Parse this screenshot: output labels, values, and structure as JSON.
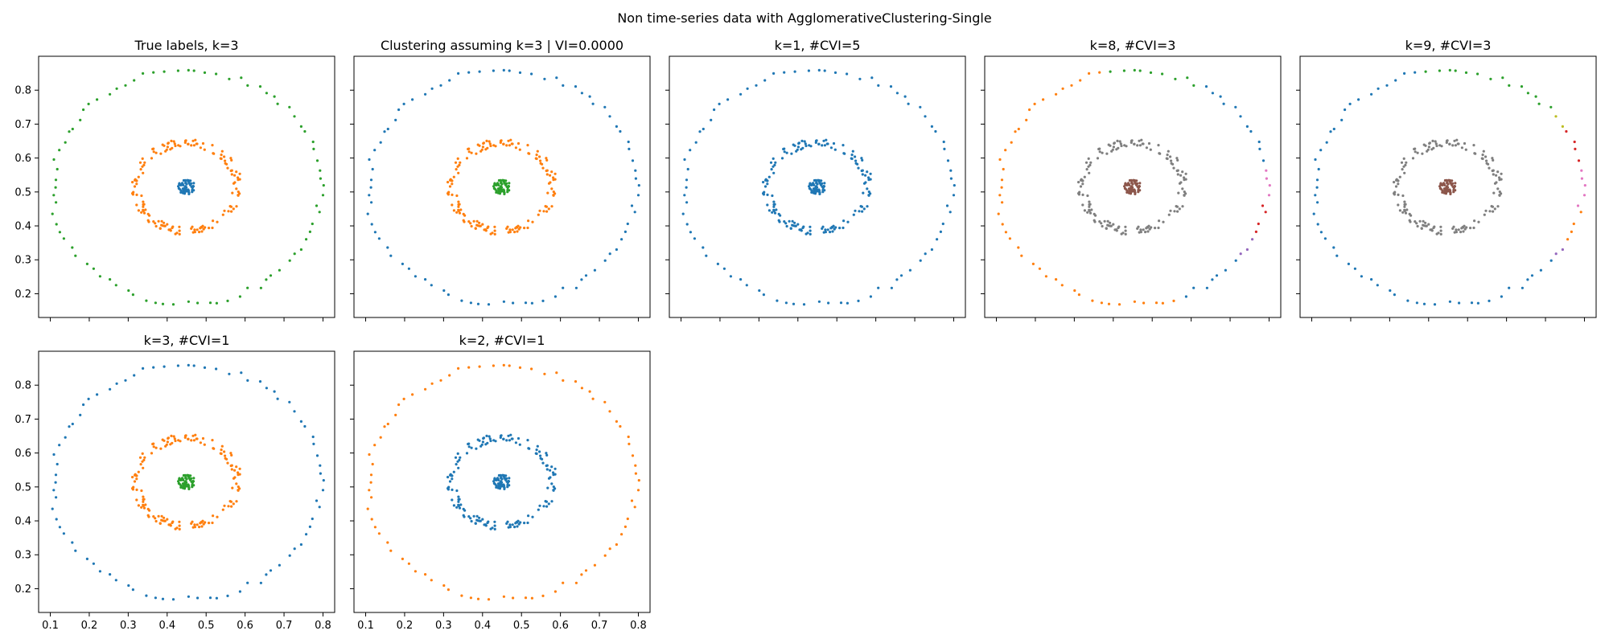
{
  "figure": {
    "suptitle": "Non time-series data with AgglomerativeClustering-Single"
  },
  "palette": [
    "#1f77b4",
    "#ff7f0e",
    "#2ca02c",
    "#d62728",
    "#9467bd",
    "#8c564b",
    "#e377c2",
    "#7f7f7f",
    "#bcbd22",
    "#17becf"
  ],
  "chart_data": [
    {
      "type": "scatter",
      "title": "True labels, k=3",
      "xlabel": "",
      "ylabel": "",
      "xlim": [
        0.07,
        0.83
      ],
      "ylim": [
        0.13,
        0.9
      ],
      "xticks": [
        "0.1",
        "0.2",
        "0.3",
        "0.4",
        "0.5",
        "0.6",
        "0.7",
        "0.8"
      ],
      "yticks": [
        "0.2",
        "0.3",
        "0.4",
        "0.5",
        "0.6",
        "0.7",
        "0.8"
      ],
      "grid": false,
      "series": [
        {
          "points": "core",
          "color": "#1f77b4"
        },
        {
          "points": "middle",
          "color": "#ff7f0e"
        },
        {
          "points": "outer",
          "color": "#2ca02c"
        }
      ]
    },
    {
      "type": "scatter",
      "title": "Clustering assuming k=3 | VI=0.0000",
      "xlim": [
        0.07,
        0.83
      ],
      "ylim": [
        0.13,
        0.9
      ],
      "grid": false,
      "series": [
        {
          "points": "outer",
          "color": "#1f77b4"
        },
        {
          "points": "middle",
          "color": "#ff7f0e"
        },
        {
          "points": "core",
          "color": "#2ca02c"
        }
      ]
    },
    {
      "type": "scatter",
      "title": "k=1, #CVI=5",
      "xlim": [
        0.07,
        0.83
      ],
      "ylim": [
        0.13,
        0.9
      ],
      "grid": false,
      "series": [
        {
          "points": "all",
          "color": "#1f77b4"
        }
      ]
    },
    {
      "type": "scatter",
      "title": "k=8, #CVI=3",
      "xlim": [
        0.07,
        0.83
      ],
      "ylim": [
        0.13,
        0.9
      ],
      "grid": false,
      "series": [
        {
          "points": "core",
          "color": "#8c564b"
        },
        {
          "points": "middle",
          "color": "#7f7f7f"
        },
        {
          "points": "outer",
          "angle_range": [
            -70,
            -36
          ],
          "color": "#1f77b4"
        },
        {
          "points": "outer",
          "angle_range": [
            -36,
            -24
          ],
          "color": "#9467bd"
        },
        {
          "points": "outer",
          "angle_range": [
            -24,
            -8
          ],
          "color": "#d62728"
        },
        {
          "points": "outer",
          "angle_range": [
            -8,
            8
          ],
          "color": "#e377c2"
        },
        {
          "points": "outer",
          "angle_range": [
            8,
            58
          ],
          "color": "#1f77b4"
        },
        {
          "points": "outer",
          "angle_range": [
            58,
            100
          ],
          "color": "#2ca02c"
        },
        {
          "points": "outer",
          "angle_range": [
            100,
            290
          ],
          "color": "#ff7f0e"
        }
      ]
    },
    {
      "type": "scatter",
      "title": "k=9, #CVI=3",
      "xlim": [
        0.07,
        0.83
      ],
      "ylim": [
        0.13,
        0.9
      ],
      "grid": false,
      "series": [
        {
          "points": "core",
          "color": "#8c564b"
        },
        {
          "points": "middle",
          "color": "#7f7f7f"
        },
        {
          "points": "outer",
          "angle_range": [
            -70,
            -36
          ],
          "color": "#1f77b4"
        },
        {
          "points": "outer",
          "angle_range": [
            -36,
            -28
          ],
          "color": "#9467bd"
        },
        {
          "points": "outer",
          "angle_range": [
            -28,
            -10
          ],
          "color": "#ff7f0e"
        },
        {
          "points": "outer",
          "angle_range": [
            -10,
            8
          ],
          "color": "#e377c2"
        },
        {
          "points": "outer",
          "angle_range": [
            8,
            30
          ],
          "color": "#d62728"
        },
        {
          "points": "outer",
          "angle_range": [
            30,
            40
          ],
          "color": "#bcbd22"
        },
        {
          "points": "outer",
          "angle_range": [
            40,
            100
          ],
          "color": "#2ca02c"
        },
        {
          "points": "outer",
          "angle_range": [
            100,
            290
          ],
          "color": "#1f77b4"
        }
      ]
    },
    {
      "type": "scatter",
      "title": "k=3, #CVI=1",
      "xlim": [
        0.07,
        0.83
      ],
      "ylim": [
        0.13,
        0.9
      ],
      "grid": false,
      "series": [
        {
          "points": "outer",
          "color": "#1f77b4"
        },
        {
          "points": "middle",
          "color": "#ff7f0e"
        },
        {
          "points": "core",
          "color": "#2ca02c"
        }
      ]
    },
    {
      "type": "scatter",
      "title": "k=2, #CVI=1",
      "xlim": [
        0.07,
        0.83
      ],
      "ylim": [
        0.13,
        0.9
      ],
      "grid": false,
      "series": [
        {
          "points": "outer",
          "color": "#ff7f0e"
        },
        {
          "points": "middle",
          "color": "#1f77b4"
        },
        {
          "points": "core",
          "color": "#1f77b4"
        }
      ]
    }
  ],
  "dataset": {
    "center": [
      0.45,
      0.515
    ],
    "core": {
      "radius": 0.022,
      "count": 60
    },
    "middle": {
      "radius": 0.13,
      "jitter": 0.012,
      "count": 150
    },
    "outer": {
      "radius": 0.345,
      "jitter": 0.009,
      "count": 80
    }
  }
}
